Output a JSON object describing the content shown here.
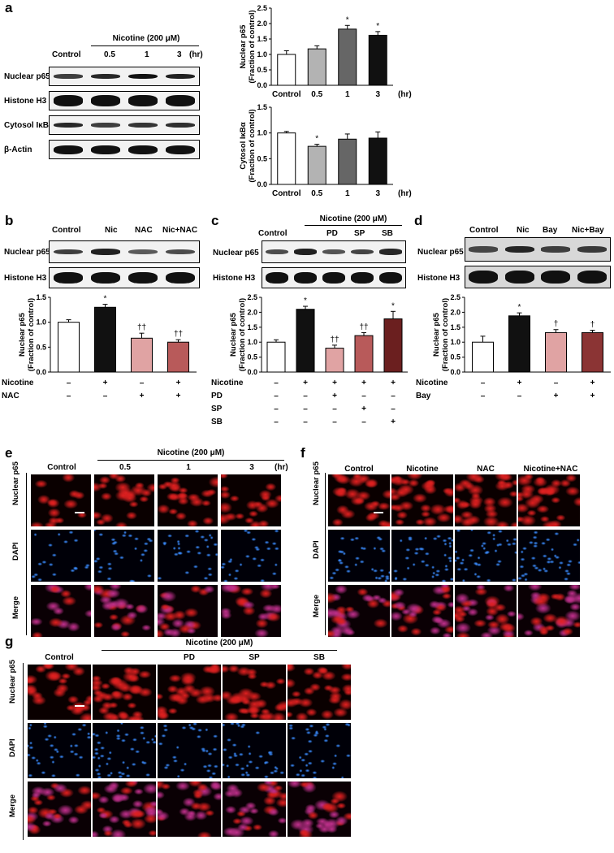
{
  "panel_letters": {
    "a": "a",
    "b": "b",
    "c": "c",
    "d": "d",
    "e": "e",
    "f": "f",
    "g": "g"
  },
  "common": {
    "nicotine_header": "Nicotine (200 μM)",
    "control": "Control",
    "hr": "(hr)",
    "plus": "+",
    "minus": "–",
    "fraction_line": "(Fraction of control)",
    "scale_bar": "—"
  },
  "panel_a": {
    "columns": [
      "Control",
      "0.5",
      "1",
      "3"
    ],
    "blot_rows": [
      "Nuclear p65",
      "Histone H3",
      "Cytosol IκBα",
      "β-Actin"
    ],
    "band_intensity": [
      [
        0.7,
        0.85,
        1.0,
        0.9
      ],
      [
        1,
        1,
        1,
        1
      ],
      [
        0.85,
        0.7,
        0.75,
        0.8
      ],
      [
        1,
        1,
        1,
        1
      ]
    ]
  },
  "panel_b": {
    "columns": [
      "Control",
      "Nic",
      "NAC",
      "Nic+NAC"
    ],
    "blot_rows": [
      "Nuclear p65",
      "Histone H3"
    ],
    "treat_rows": [
      {
        "label": "Nicotine",
        "signs": [
          "–",
          "+",
          "–",
          "+"
        ]
      },
      {
        "label": "NAC",
        "signs": [
          "–",
          "–",
          "+",
          "+"
        ]
      }
    ]
  },
  "panel_c": {
    "columns": [
      "Control",
      "",
      "PD",
      "SP",
      "SB"
    ],
    "blot_rows": [
      "Nuclear p65",
      "Histone H3"
    ],
    "treat_rows": [
      {
        "label": "Nicotine",
        "signs": [
          "–",
          "+",
          "+",
          "+",
          "+"
        ]
      },
      {
        "label": "PD",
        "signs": [
          "–",
          "–",
          "+",
          "–",
          "–"
        ]
      },
      {
        "label": "SP",
        "signs": [
          "–",
          "–",
          "–",
          "+",
          "–"
        ]
      },
      {
        "label": "SB",
        "signs": [
          "–",
          "–",
          "–",
          "–",
          "+"
        ]
      }
    ]
  },
  "panel_d": {
    "columns": [
      "Control",
      "Nic",
      "Bay",
      "Nic+Bay"
    ],
    "blot_rows": [
      "Nuclear p65",
      "Histone H3"
    ],
    "treat_rows": [
      {
        "label": "Nicotine",
        "signs": [
          "–",
          "+",
          "–",
          "+"
        ]
      },
      {
        "label": "Bay",
        "signs": [
          "–",
          "–",
          "+",
          "+"
        ]
      }
    ]
  },
  "panel_e": {
    "columns": [
      "Control",
      "0.5",
      "1",
      "3"
    ],
    "rows": [
      "Nuclear p65",
      "DAPI",
      "Merge"
    ]
  },
  "panel_f": {
    "columns": [
      "Control",
      "Nicotine",
      "NAC",
      "Nicotine+NAC"
    ],
    "rows": [
      "Nuclear p65",
      "DAPI",
      "Merge"
    ]
  },
  "panel_g": {
    "columns": [
      "Control",
      "",
      "PD",
      "SP",
      "SB"
    ],
    "rows": [
      "Nuclear p65",
      "DAPI",
      "Merge"
    ]
  },
  "colors": {
    "white": "#ffffff",
    "lightgray": "#b3b3b3",
    "gray": "#666666",
    "black": "#111111",
    "pink": "#e0a3a3",
    "rose": "#b85a5a",
    "maroon": "#8b3434",
    "darkmaroon": "#6b1f1f",
    "red_channel": "#e02020",
    "blue_channel": "#3a8cff",
    "merge": "#c0308c"
  },
  "chart_data": [
    {
      "id": "a_top",
      "type": "bar",
      "categories": [
        "Control",
        "0.5",
        "1",
        "3"
      ],
      "values": [
        1.0,
        1.18,
        1.82,
        1.62
      ],
      "errors": [
        0.12,
        0.1,
        0.12,
        0.12
      ],
      "annotations": [
        "",
        "",
        "*",
        "*"
      ],
      "ylabel": "Nuclear p65",
      "ylabel2": "(Fraction of control)",
      "ylim": [
        0,
        2.5
      ],
      "yticks": [
        "0.0",
        "0.5",
        "1.0",
        "1.5",
        "2.0",
        "2.5"
      ],
      "xunit": "(hr)",
      "colors": [
        "#ffffff",
        "#b3b3b3",
        "#666666",
        "#111111"
      ]
    },
    {
      "id": "a_bottom",
      "type": "bar",
      "categories": [
        "Control",
        "0.5",
        "1",
        "3"
      ],
      "values": [
        1.0,
        0.74,
        0.88,
        0.9
      ],
      "errors": [
        0.03,
        0.04,
        0.1,
        0.12
      ],
      "annotations": [
        "",
        "*",
        "",
        ""
      ],
      "ylabel": "Cytosol IκBα",
      "ylabel2": "(Fraction of control)",
      "ylim": [
        0,
        1.5
      ],
      "yticks": [
        "0.0",
        "0.5",
        "1.0",
        "1.5"
      ],
      "xunit": "(hr)",
      "colors": [
        "#ffffff",
        "#b3b3b3",
        "#666666",
        "#111111"
      ]
    },
    {
      "id": "b",
      "type": "bar",
      "categories": [
        "1",
        "2",
        "3",
        "4"
      ],
      "values": [
        1.0,
        1.3,
        0.68,
        0.6
      ],
      "errors": [
        0.05,
        0.06,
        0.1,
        0.05
      ],
      "annotations": [
        "",
        "*",
        "††",
        "††"
      ],
      "ylabel": "Nuclear p65",
      "ylabel2": "(Fraction of control)",
      "ylim": [
        0,
        1.5
      ],
      "yticks": [
        "0.0",
        "0.5",
        "1.0",
        "1.5"
      ],
      "colors": [
        "#ffffff",
        "#111111",
        "#e0a3a3",
        "#b85a5a"
      ]
    },
    {
      "id": "c",
      "type": "bar",
      "categories": [
        "1",
        "2",
        "3",
        "4",
        "5"
      ],
      "values": [
        1.0,
        2.1,
        0.8,
        1.22,
        1.78
      ],
      "errors": [
        0.08,
        0.1,
        0.1,
        0.1,
        0.25
      ],
      "annotations": [
        "",
        "*",
        "††",
        "††",
        "*"
      ],
      "ylabel": "Nuclear p65",
      "ylabel2": "(Fraction of control)",
      "ylim": [
        0,
        2.5
      ],
      "yticks": [
        "0.0",
        "0.5",
        "1.0",
        "1.5",
        "2.0",
        "2.5"
      ],
      "colors": [
        "#ffffff",
        "#111111",
        "#e0a3a3",
        "#b85a5a",
        "#6b1f1f"
      ]
    },
    {
      "id": "d",
      "type": "bar",
      "categories": [
        "1",
        "2",
        "3",
        "4"
      ],
      "values": [
        1.0,
        1.88,
        1.32,
        1.32
      ],
      "errors": [
        0.2,
        0.1,
        0.1,
        0.08
      ],
      "annotations": [
        "",
        "*",
        "†",
        "†"
      ],
      "ylabel": "Nuclear p65",
      "ylabel2": "(Fraction of control)",
      "ylim": [
        0,
        2.5
      ],
      "yticks": [
        "0.0",
        "0.5",
        "1.0",
        "1.5",
        "2.0",
        "2.5"
      ],
      "colors": [
        "#ffffff",
        "#111111",
        "#e0a3a3",
        "#8b3434"
      ]
    }
  ]
}
